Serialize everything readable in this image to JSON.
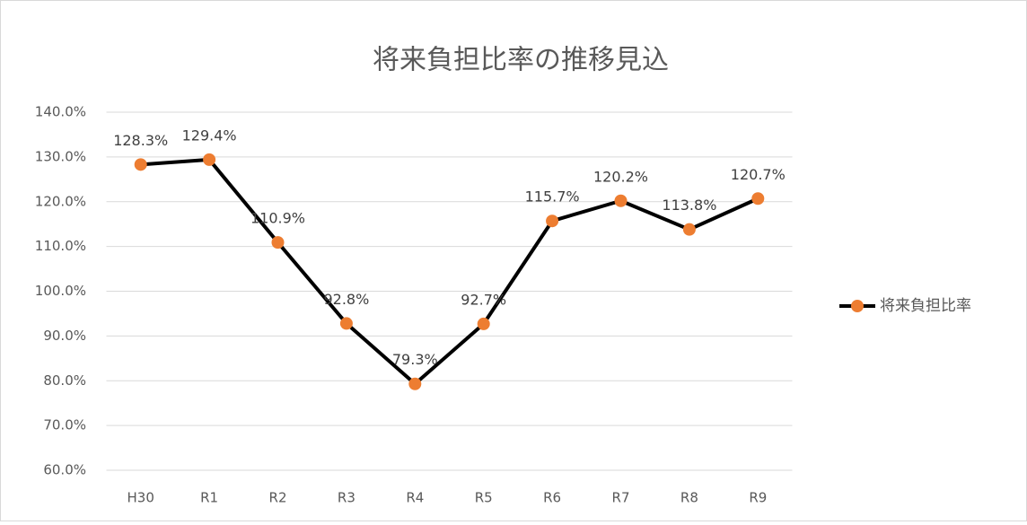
{
  "chart_data": {
    "type": "line",
    "title": "将来負担比率の推移見込",
    "categories": [
      "H30",
      "R1",
      "R2",
      "R3",
      "R4",
      "R5",
      "R6",
      "R7",
      "R8",
      "R9"
    ],
    "series": [
      {
        "name": "将来負担比率",
        "color": "#ED7D31",
        "line_color": "#000000",
        "values": [
          128.3,
          129.4,
          110.9,
          92.8,
          79.3,
          92.7,
          115.7,
          120.2,
          113.8,
          120.7
        ],
        "value_labels": [
          "128.3%",
          "129.4%",
          "110.9%",
          "92.8%",
          "79.3%",
          "92.7%",
          "115.7%",
          "120.2%",
          "113.8%",
          "120.7%"
        ]
      }
    ],
    "ylim": [
      60,
      140
    ],
    "yticks": [
      {
        "value": 60,
        "label": "60.0%"
      },
      {
        "value": 70,
        "label": "70.0%"
      },
      {
        "value": 80,
        "label": "80.0%"
      },
      {
        "value": 90,
        "label": "90.0%"
      },
      {
        "value": 100,
        "label": "100.0%"
      },
      {
        "value": 110,
        "label": "110.0%"
      },
      {
        "value": 120,
        "label": "120.0%"
      },
      {
        "value": 130,
        "label": "130.0%"
      },
      {
        "value": 140,
        "label": "140.0%"
      }
    ],
    "grid": true,
    "legend": "right"
  }
}
